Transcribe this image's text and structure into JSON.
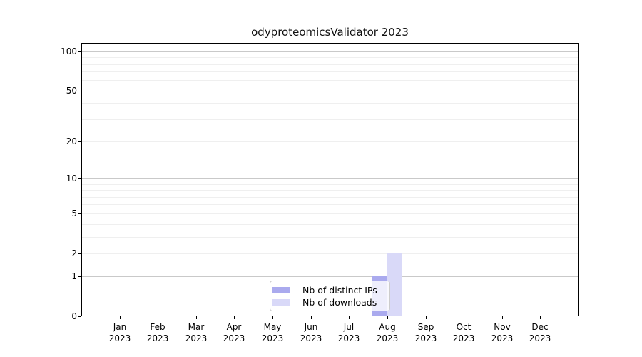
{
  "chart_data": {
    "type": "bar",
    "title": "odyproteomicsValidator 2023",
    "categories": [
      "Jan",
      "Feb",
      "Mar",
      "Apr",
      "May",
      "Jun",
      "Jul",
      "Aug",
      "Sep",
      "Oct",
      "Nov",
      "Dec"
    ],
    "year_label": "2023",
    "series": [
      {
        "name": "Nb of distinct IPs",
        "color": "#aaaaee",
        "values": [
          0,
          0,
          0,
          0,
          0,
          0,
          0,
          1,
          0,
          0,
          0,
          0
        ]
      },
      {
        "name": "Nb of downloads",
        "color": "#d9d9f8",
        "values": [
          0,
          0,
          0,
          0,
          0,
          0,
          0,
          2,
          0,
          0,
          0,
          0
        ]
      }
    ],
    "y_axis": {
      "scale": "log1p",
      "ticks": [
        0,
        1,
        2,
        5,
        10,
        20,
        50,
        100
      ],
      "max_value": 116
    },
    "grid": {
      "major": [
        1,
        10,
        100
      ],
      "minor": [
        2,
        3,
        4,
        5,
        6,
        7,
        8,
        9,
        20,
        30,
        40,
        50,
        60,
        70,
        80,
        90
      ],
      "major_color": "#c9c9c9",
      "minor_color": "#efefef"
    },
    "legend_position": "lower center"
  }
}
